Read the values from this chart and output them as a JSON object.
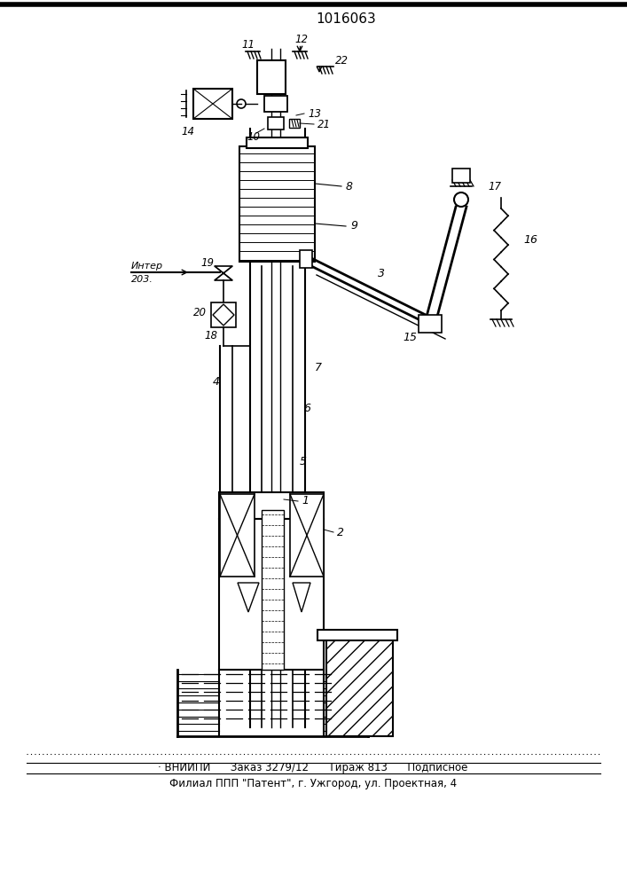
{
  "title": "1016063",
  "footer_line1": "· ВНИИПИ      Заказ 3279/12      Тираж 813      Подписное",
  "footer_line2": "Филиал ППП \"Патент\", г. Ужгород, ул. Проектная, 4",
  "bg_color": "#ffffff",
  "line_color": "#000000"
}
